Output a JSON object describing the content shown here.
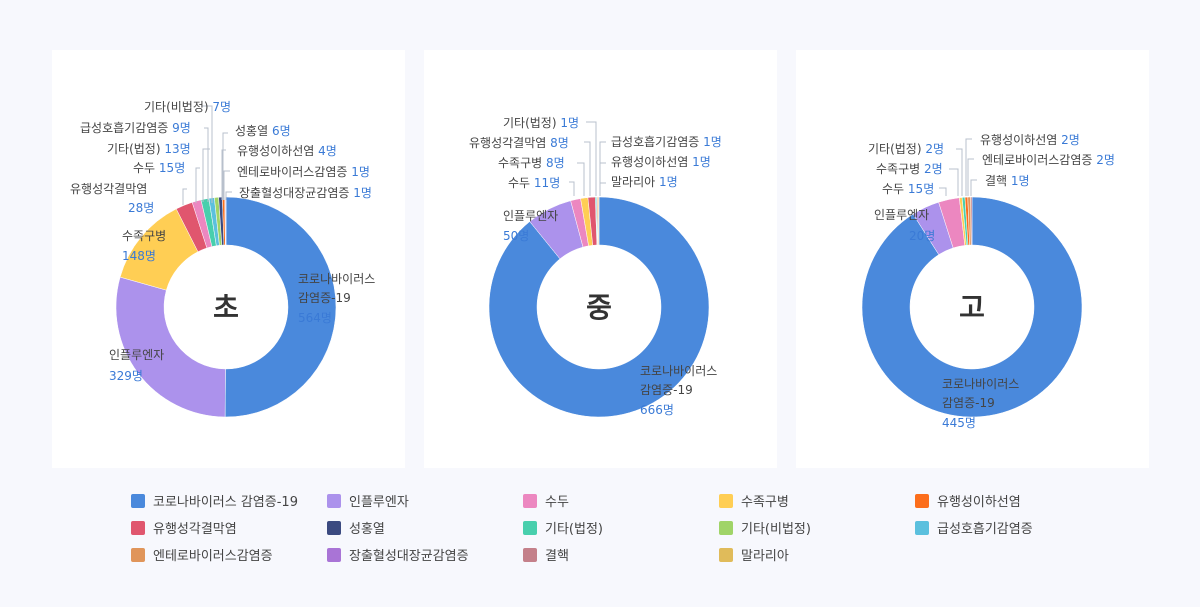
{
  "chart_data": [
    {
      "type": "pie",
      "title": "초",
      "categories": [
        "코로나바이러스 감염증-19",
        "인플루엔자",
        "수족구병",
        "유행성각결막염",
        "수두",
        "기타(법정)",
        "급성호흡기감염증",
        "기타(비법정)",
        "성홍열",
        "유행성이하선염",
        "엔테로바이러스감염증",
        "장출혈성대장균감염증"
      ],
      "values": [
        564,
        329,
        148,
        28,
        15,
        13,
        9,
        7,
        6,
        4,
        1,
        1
      ],
      "unit": "명"
    },
    {
      "type": "pie",
      "title": "중",
      "categories": [
        "코로나바이러스 감염증-19",
        "인플루엔자",
        "수두",
        "수족구병",
        "유행성각결막염",
        "기타(법정)",
        "급성호흡기감염증",
        "유행성이하선염",
        "말라리아"
      ],
      "values": [
        666,
        50,
        11,
        8,
        8,
        1,
        1,
        1,
        1
      ],
      "unit": "명"
    },
    {
      "type": "pie",
      "title": "고",
      "categories": [
        "코로나바이러스 감염증-19",
        "인플루엔자",
        "수두",
        "수족구병",
        "기타(법정)",
        "유행성이하선염",
        "엔테로바이러스감염증",
        "결핵"
      ],
      "values": [
        445,
        20,
        15,
        2,
        2,
        2,
        2,
        1
      ],
      "unit": "명"
    }
  ],
  "charts": [
    {
      "center_label": "초",
      "labels": [
        {
          "name": "코로나바이러스",
          "name2": "감염증-19",
          "value": "564명"
        },
        {
          "name": "인플루엔자",
          "value": "329명"
        },
        {
          "name": "수족구병",
          "value": "148명"
        },
        {
          "name": "유행성각결막염",
          "value": "28명"
        },
        {
          "name": "수두",
          "value": "15명"
        },
        {
          "name": "기타(법정)",
          "value": "13명"
        },
        {
          "name": "급성호흡기감염증",
          "value": "9명"
        },
        {
          "name": "기타(비법정)",
          "value": "7명"
        },
        {
          "name": "성홍열",
          "value": "6명"
        },
        {
          "name": "유행성이하선염",
          "value": "4명"
        },
        {
          "name": "엔테로바이러스감염증",
          "value": "1명"
        },
        {
          "name": "장출혈성대장균감염증",
          "value": "1명"
        }
      ]
    },
    {
      "center_label": "중",
      "labels": [
        {
          "name": "코로나바이러스",
          "name2": "감염증-19",
          "value": "666명"
        },
        {
          "name": "인플루엔자",
          "value": "50명"
        },
        {
          "name": "수두",
          "value": "11명"
        },
        {
          "name": "수족구병",
          "value": "8명"
        },
        {
          "name": "유행성각결막염",
          "value": "8명"
        },
        {
          "name": "기타(법정)",
          "value": "1명"
        },
        {
          "name": "급성호흡기감염증",
          "value": "1명"
        },
        {
          "name": "유행성이하선염",
          "value": "1명"
        },
        {
          "name": "말라리아",
          "value": "1명"
        }
      ]
    },
    {
      "center_label": "고",
      "labels": [
        {
          "name": "코로나바이러스",
          "name2": "감염증-19",
          "value": "445명"
        },
        {
          "name": "인플루엔자",
          "value": "20명"
        },
        {
          "name": "수두",
          "value": "15명"
        },
        {
          "name": "수족구병",
          "value": "2명"
        },
        {
          "name": "기타(법정)",
          "value": "2명"
        },
        {
          "name": "유행성이하선염",
          "value": "2명"
        },
        {
          "name": "엔테로바이러스감염증",
          "value": "2명"
        },
        {
          "name": "결핵",
          "value": "1명"
        }
      ]
    }
  ],
  "legend": [
    {
      "label": "코로나바이러스 감염증-19",
      "color": "#4a89dc"
    },
    {
      "label": "인플루엔자",
      "color": "#ac92ec"
    },
    {
      "label": "수두",
      "color": "#ec87c0"
    },
    {
      "label": "수족구병",
      "color": "#ffce54"
    },
    {
      "label": "유행성이하선염",
      "color": "#fc6e1c"
    },
    {
      "label": "유행성각결막염",
      "color": "#e0566e"
    },
    {
      "label": "성홍열",
      "color": "#3b4a80"
    },
    {
      "label": "기타(법정)",
      "color": "#48cfad"
    },
    {
      "label": "기타(비법정)",
      "color": "#a0d468"
    },
    {
      "label": "급성호흡기감염증",
      "color": "#5bc0de"
    },
    {
      "label": "엔테로바이러스감염증",
      "color": "#e0955a"
    },
    {
      "label": "장출혈성대장균감염증",
      "color": "#a974d6"
    },
    {
      "label": "결핵",
      "color": "#c4808a"
    },
    {
      "label": "말라리아",
      "color": "#e0bb5a"
    }
  ]
}
